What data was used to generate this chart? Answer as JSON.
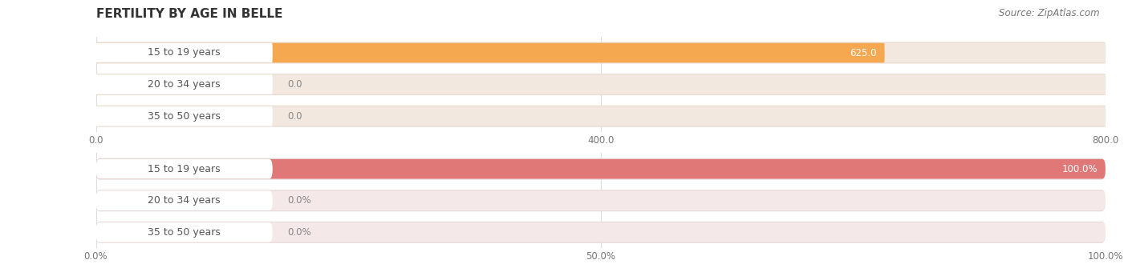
{
  "title": "FERTILITY BY AGE IN BELLE",
  "source_text": "Source: ZipAtlas.com",
  "chart1": {
    "categories": [
      "15 to 19 years",
      "20 to 34 years",
      "35 to 50 years"
    ],
    "values": [
      625.0,
      0.0,
      0.0
    ],
    "xlim": [
      0,
      800.0
    ],
    "xticks": [
      0.0,
      400.0,
      800.0
    ],
    "xticklabels": [
      "0.0",
      "400.0",
      "800.0"
    ],
    "bar_color": "#F5A850",
    "bar_bg_color": "#F2E8E0",
    "bar_outer_color": "#E8DACE",
    "label_bg_color": "#FFFFFF",
    "label_color": "#555555",
    "value_color": "#FFFFFF",
    "value_outside_color": "#888888"
  },
  "chart2": {
    "categories": [
      "15 to 19 years",
      "20 to 34 years",
      "35 to 50 years"
    ],
    "values": [
      100.0,
      0.0,
      0.0
    ],
    "xlim": [
      0,
      100.0
    ],
    "xticks": [
      0.0,
      50.0,
      100.0
    ],
    "xticklabels": [
      "0.0%",
      "50.0%",
      "100.0%"
    ],
    "bar_color": "#E07878",
    "bar_bg_color": "#F5E8E8",
    "bar_outer_color": "#E8D8D8",
    "label_bg_color": "#FFFFFF",
    "label_color": "#555555",
    "value_color": "#FFFFFF",
    "value_outside_color": "#888888"
  },
  "bg_color": "#FFFFFF",
  "bar_height": 0.62,
  "label_fontsize": 9,
  "value_fontsize": 8.5,
  "title_fontsize": 11,
  "source_fontsize": 8.5,
  "axis_fontsize": 8.5
}
